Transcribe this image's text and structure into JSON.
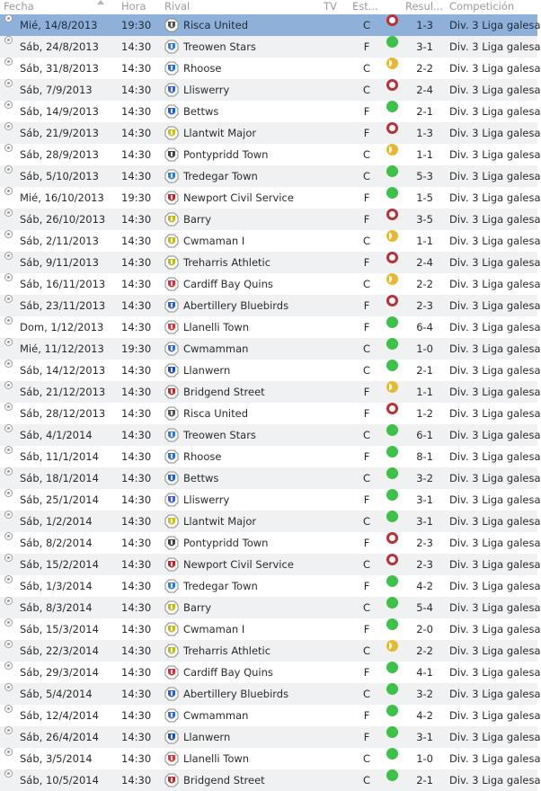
{
  "header": {
    "fecha": "Fecha",
    "hora": "Hora",
    "rival": "Rival",
    "tv": "TV",
    "estadio": "Est...",
    "resultado": "Resul...",
    "competicion": "Competición"
  },
  "colors": {
    "selected_row": "#8fb0d8",
    "alt_row": "#f0f1f3",
    "win": "#3fbf4b",
    "loss": "#b5323a",
    "draw": "#e6b83a"
  },
  "matches": [
    {
      "date": "Mié, 14/8/2013",
      "time": "19:30",
      "rival": "Risca United",
      "venue": "C",
      "result": "loss",
      "score": "1-3",
      "comp": "Div. 3 Liga galesa",
      "crest": "#555555",
      "selected": true
    },
    {
      "date": "Sáb, 24/8/2013",
      "time": "14:30",
      "rival": "Treowen Stars",
      "venue": "F",
      "result": "win",
      "score": "3-1",
      "comp": "Div. 3 Liga galesa",
      "crest": "#3a7bd5"
    },
    {
      "date": "Sáb, 31/8/2013",
      "time": "14:30",
      "rival": "Rhoose",
      "venue": "C",
      "result": "draw",
      "score": "2-2",
      "comp": "Div. 3 Liga galesa",
      "crest": "#2e6fd6"
    },
    {
      "date": "Sáb, 7/9/2013",
      "time": "14:30",
      "rival": "Lliswerry",
      "venue": "C",
      "result": "loss",
      "score": "2-4",
      "comp": "Div. 3 Liga galesa",
      "crest": "#3d5fd9"
    },
    {
      "date": "Sáb, 14/9/2013",
      "time": "14:30",
      "rival": "Bettws",
      "venue": "F",
      "result": "win",
      "score": "2-1",
      "comp": "Div. 3 Liga galesa",
      "crest": "#1f5fd0"
    },
    {
      "date": "Sáb, 21/9/2013",
      "time": "14:30",
      "rival": "Llantwit Major",
      "venue": "F",
      "result": "loss",
      "score": "1-3",
      "comp": "Div. 3 Liga galesa",
      "crest": "#c8c21a"
    },
    {
      "date": "Sáb, 28/9/2013",
      "time": "14:30",
      "rival": "Pontypridd Town",
      "venue": "C",
      "result": "draw",
      "score": "1-1",
      "comp": "Div. 3 Liga galesa",
      "crest": "#444444"
    },
    {
      "date": "Sáb, 5/10/2013",
      "time": "14:30",
      "rival": "Tredegar Town",
      "venue": "C",
      "result": "win",
      "score": "5-3",
      "comp": "Div. 3 Liga galesa",
      "crest": "#2f7fd6"
    },
    {
      "date": "Mié, 16/10/2013",
      "time": "19:30",
      "rival": "Newport Civil Service",
      "venue": "F",
      "result": "win",
      "score": "1-5",
      "comp": "Div. 3 Liga galesa",
      "crest": "#c0262c"
    },
    {
      "date": "Sáb, 26/10/2013",
      "time": "14:30",
      "rival": "Barry",
      "venue": "F",
      "result": "loss",
      "score": "3-5",
      "comp": "Div. 3 Liga galesa",
      "crest": "#c8b820"
    },
    {
      "date": "Sáb, 2/11/2013",
      "time": "14:30",
      "rival": "Cwmaman I",
      "venue": "C",
      "result": "draw",
      "score": "1-1",
      "comp": "Div. 3 Liga galesa",
      "crest": "#c8b820"
    },
    {
      "date": "Sáb, 9/11/2013",
      "time": "14:30",
      "rival": "Treharris Athletic",
      "venue": "F",
      "result": "loss",
      "score": "2-4",
      "comp": "Div. 3 Liga galesa",
      "crest": "#b8c020"
    },
    {
      "date": "Sáb, 16/11/2013",
      "time": "14:30",
      "rival": "Cardiff Bay Quins",
      "venue": "C",
      "result": "draw",
      "score": "2-2",
      "comp": "Div. 3 Liga galesa",
      "crest": "#d83030"
    },
    {
      "date": "Sáb, 23/11/2013",
      "time": "14:30",
      "rival": "Abertillery Bluebirds",
      "venue": "F",
      "result": "loss",
      "score": "2-3",
      "comp": "Div. 3 Liga galesa",
      "crest": "#2e5fd6"
    },
    {
      "date": "Dom, 1/12/2013",
      "time": "14:30",
      "rival": "Llanelli Town",
      "venue": "F",
      "result": "win",
      "score": "6-4",
      "comp": "Div. 3 Liga galesa",
      "crest": "#d83a3a"
    },
    {
      "date": "Mié, 11/12/2013",
      "time": "19:30",
      "rival": "Cwmamman",
      "venue": "C",
      "result": "win",
      "score": "1-0",
      "comp": "Div. 3 Liga galesa",
      "crest": "#3a6fd6"
    },
    {
      "date": "Sáb, 14/12/2013",
      "time": "14:30",
      "rival": "Llanwern",
      "venue": "C",
      "result": "win",
      "score": "2-1",
      "comp": "Div. 3 Liga galesa",
      "crest": "#1f4fb8"
    },
    {
      "date": "Sáb, 21/12/2013",
      "time": "14:30",
      "rival": "Bridgend Street",
      "venue": "F",
      "result": "draw",
      "score": "1-1",
      "comp": "Div. 3 Liga galesa",
      "crest": "#b83030"
    },
    {
      "date": "Sáb, 28/12/2013",
      "time": "14:30",
      "rival": "Risca United",
      "venue": "F",
      "result": "loss",
      "score": "1-2",
      "comp": "Div. 3 Liga galesa",
      "crest": "#555555"
    },
    {
      "date": "Sáb, 4/1/2014",
      "time": "14:30",
      "rival": "Treowen Stars",
      "venue": "C",
      "result": "win",
      "score": "6-1",
      "comp": "Div. 3 Liga galesa",
      "crest": "#3a7bd5"
    },
    {
      "date": "Sáb, 11/1/2014",
      "time": "14:30",
      "rival": "Rhoose",
      "venue": "F",
      "result": "win",
      "score": "8-1",
      "comp": "Div. 3 Liga galesa",
      "crest": "#2e6fd6"
    },
    {
      "date": "Sáb, 18/1/2014",
      "time": "14:30",
      "rival": "Bettws",
      "venue": "C",
      "result": "win",
      "score": "3-2",
      "comp": "Div. 3 Liga galesa",
      "crest": "#1f5fd0"
    },
    {
      "date": "Sáb, 25/1/2014",
      "time": "14:30",
      "rival": "Lliswerry",
      "venue": "F",
      "result": "win",
      "score": "3-1",
      "comp": "Div. 3 Liga galesa",
      "crest": "#3d5fd9"
    },
    {
      "date": "Sáb, 1/2/2014",
      "time": "14:30",
      "rival": "Llantwit Major",
      "venue": "C",
      "result": "win",
      "score": "3-1",
      "comp": "Div. 3 Liga galesa",
      "crest": "#c8c21a"
    },
    {
      "date": "Sáb, 8/2/2014",
      "time": "14:30",
      "rival": "Pontypridd Town",
      "venue": "F",
      "result": "loss",
      "score": "2-3",
      "comp": "Div. 3 Liga galesa",
      "crest": "#444444"
    },
    {
      "date": "Sáb, 15/2/2014",
      "time": "14:30",
      "rival": "Newport Civil Service",
      "venue": "C",
      "result": "loss",
      "score": "2-3",
      "comp": "Div. 3 Liga galesa",
      "crest": "#c0262c"
    },
    {
      "date": "Sáb, 1/3/2014",
      "time": "14:30",
      "rival": "Tredegar Town",
      "venue": "F",
      "result": "win",
      "score": "4-2",
      "comp": "Div. 3 Liga galesa",
      "crest": "#2f7fd6"
    },
    {
      "date": "Sáb, 8/3/2014",
      "time": "14:30",
      "rival": "Barry",
      "venue": "C",
      "result": "win",
      "score": "5-4",
      "comp": "Div. 3 Liga galesa",
      "crest": "#c8b820"
    },
    {
      "date": "Sáb, 15/3/2014",
      "time": "14:30",
      "rival": "Cwmaman I",
      "venue": "F",
      "result": "win",
      "score": "2-0",
      "comp": "Div. 3 Liga galesa",
      "crest": "#c8b820"
    },
    {
      "date": "Sáb, 22/3/2014",
      "time": "14:30",
      "rival": "Treharris Athletic",
      "venue": "C",
      "result": "draw",
      "score": "2-2",
      "comp": "Div. 3 Liga galesa",
      "crest": "#b8c020"
    },
    {
      "date": "Sáb, 29/3/2014",
      "time": "14:30",
      "rival": "Cardiff Bay Quins",
      "venue": "F",
      "result": "win",
      "score": "4-1",
      "comp": "Div. 3 Liga galesa",
      "crest": "#d83030"
    },
    {
      "date": "Sáb, 5/4/2014",
      "time": "14:30",
      "rival": "Abertillery Bluebirds",
      "venue": "C",
      "result": "win",
      "score": "3-2",
      "comp": "Div. 3 Liga galesa",
      "crest": "#2e5fd6"
    },
    {
      "date": "Sáb, 12/4/2014",
      "time": "14:30",
      "rival": "Cwmamman",
      "venue": "F",
      "result": "win",
      "score": "4-2",
      "comp": "Div. 3 Liga galesa",
      "crest": "#3a6fd6"
    },
    {
      "date": "Sáb, 26/4/2014",
      "time": "14:30",
      "rival": "Llanwern",
      "venue": "F",
      "result": "win",
      "score": "3-1",
      "comp": "Div. 3 Liga galesa",
      "crest": "#1f4fb8"
    },
    {
      "date": "Sáb, 3/5/2014",
      "time": "14:30",
      "rival": "Llanelli Town",
      "venue": "C",
      "result": "win",
      "score": "1-0",
      "comp": "Div. 3 Liga galesa",
      "crest": "#d83a3a"
    },
    {
      "date": "Sáb, 10/5/2014",
      "time": "14:30",
      "rival": "Bridgend Street",
      "venue": "C",
      "result": "win",
      "score": "2-1",
      "comp": "Div. 3 Liga galesa",
      "crest": "#b83030"
    }
  ]
}
